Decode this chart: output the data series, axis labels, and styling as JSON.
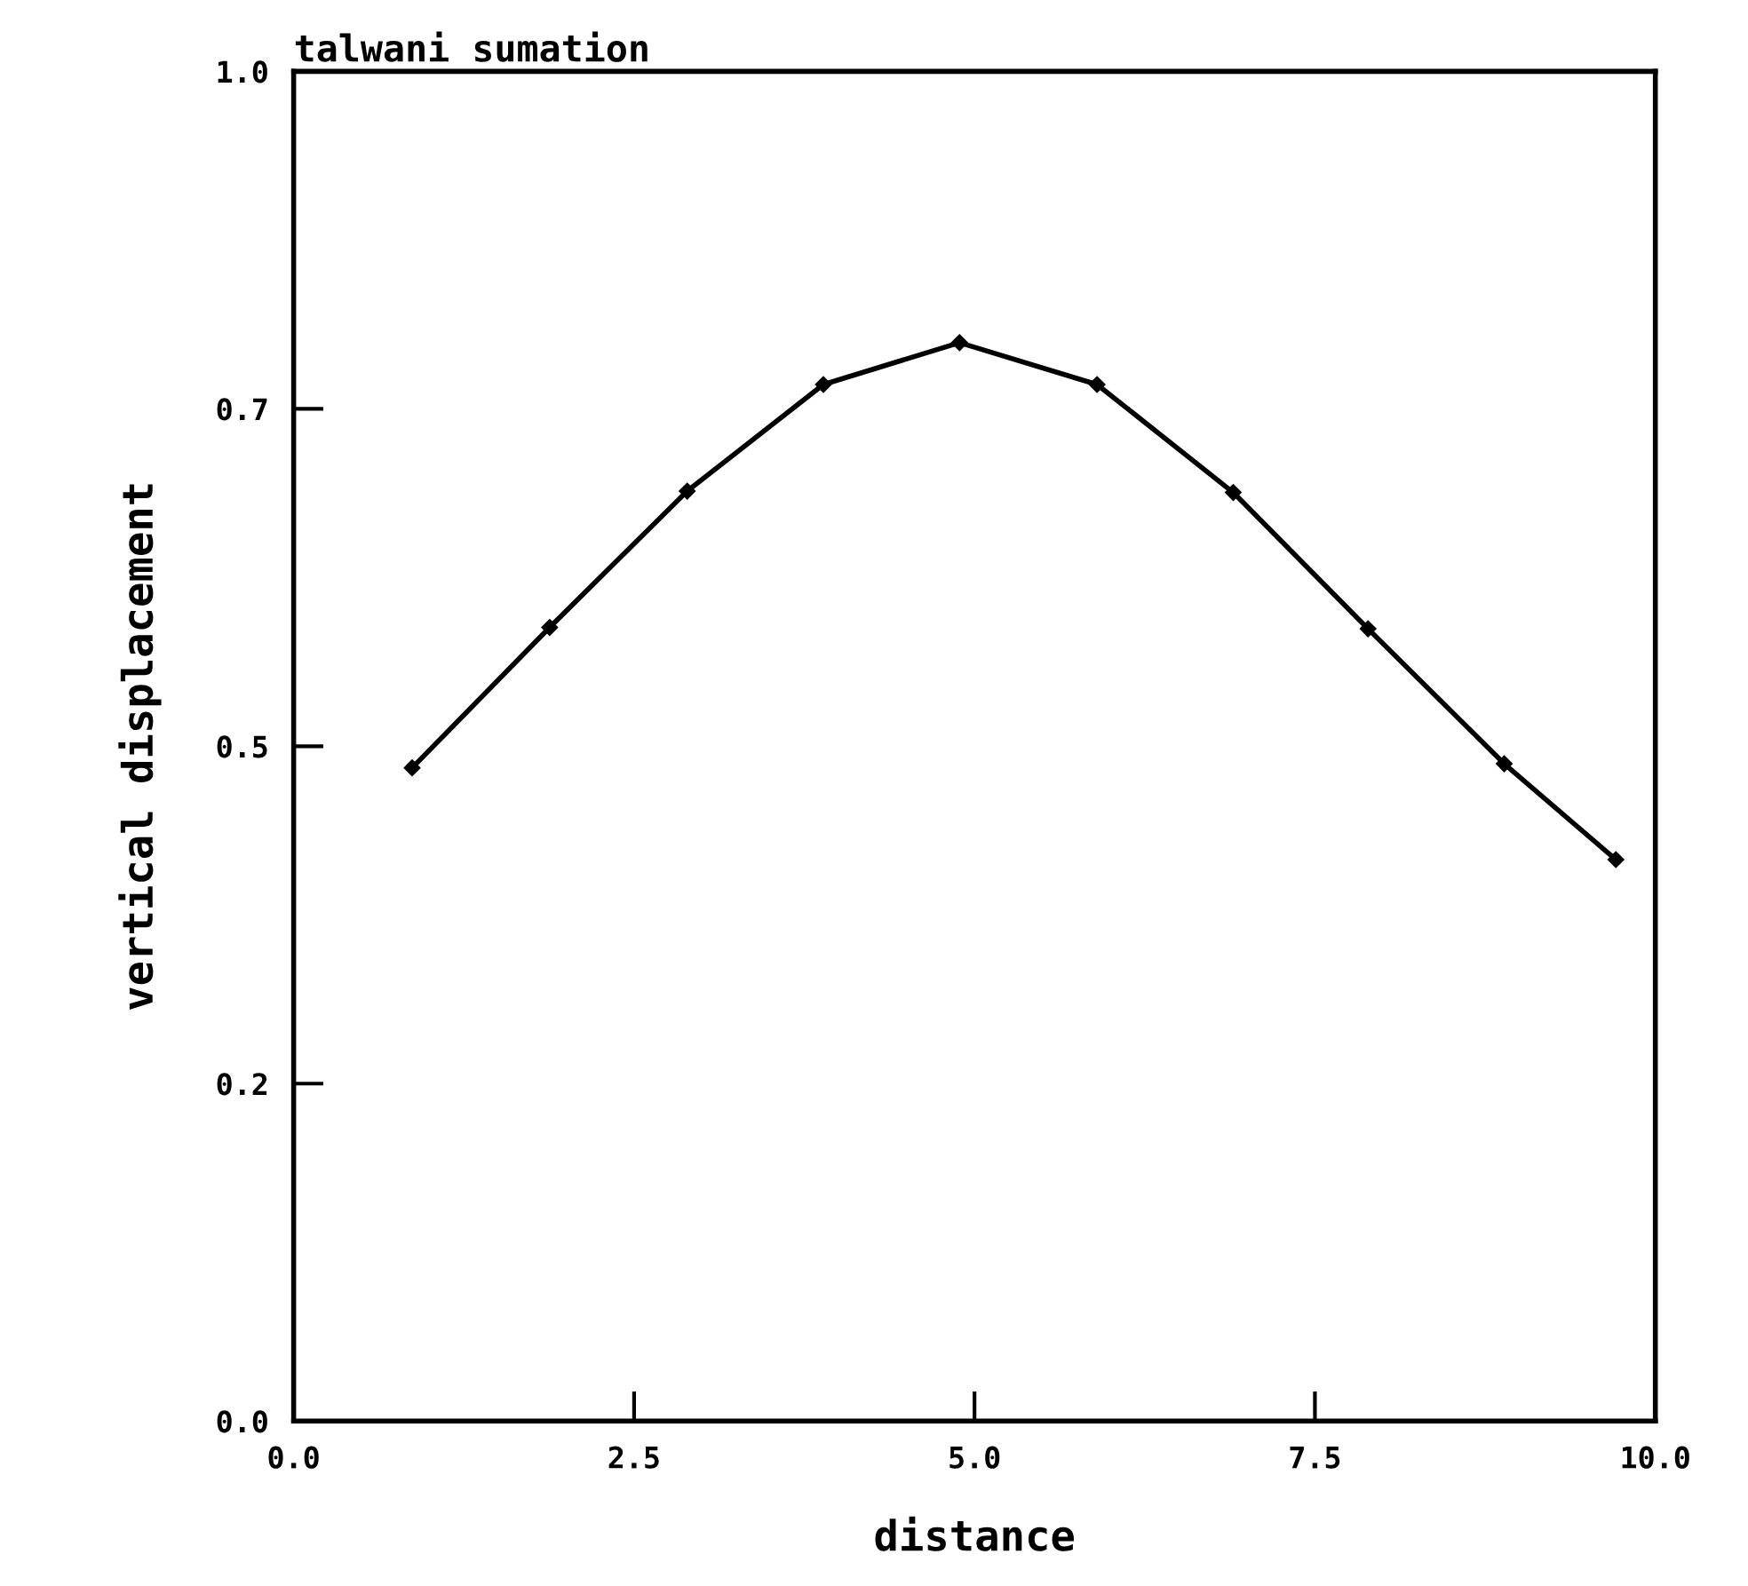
{
  "chart_data": {
    "type": "line",
    "title": "talwani sumation",
    "xlabel": "distance",
    "ylabel": "vertical displacement",
    "x": [
      0.87,
      1.88,
      2.89,
      3.89,
      4.89,
      5.9,
      6.9,
      7.89,
      8.89,
      9.71
    ],
    "series": [
      {
        "color": "#000000",
        "values": [
          0.484,
          0.588,
          0.689,
          0.768,
          0.799,
          0.768,
          0.688,
          0.587,
          0.487,
          0.416
        ]
      }
    ],
    "xlim": [
      0,
      10
    ],
    "xticks": [
      {
        "value": 0,
        "label": "0.0"
      },
      2.5,
      {
        "value": 5,
        "label": "5.0"
      },
      7.5,
      {
        "value": 10,
        "label": "10.0"
      }
    ],
    "ylim": [
      0,
      1
    ],
    "yticks": [
      {
        "value": 0,
        "label": "0.0"
      },
      {
        "value": 0.25,
        "label": "0.2"
      },
      {
        "value": 0.5,
        "label": "0.5"
      },
      {
        "value": 0.75,
        "label": "0.7"
      },
      {
        "value": 1,
        "label": "1.0"
      }
    ],
    "marker": "diamond",
    "line_style": "solid",
    "grid": false,
    "legend": false
  }
}
